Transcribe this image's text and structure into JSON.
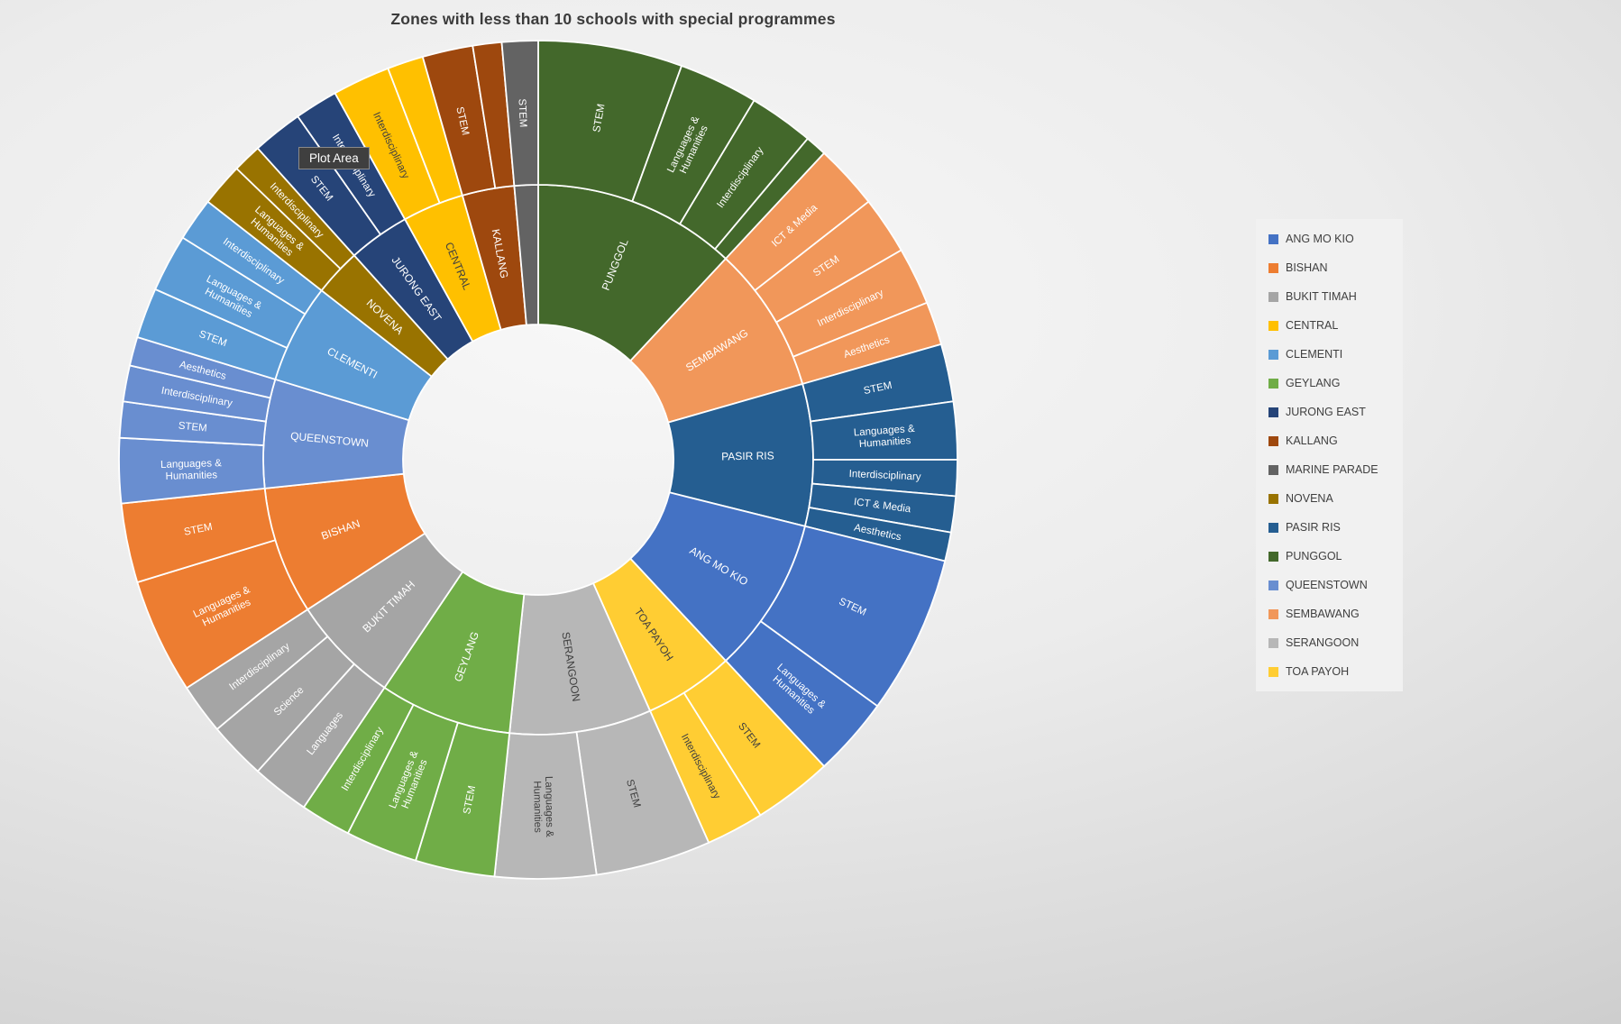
{
  "title": "Zones with less than 10 schools with special programmes",
  "tooltip": {
    "text": "Plot Area"
  },
  "chart_data": {
    "type": "sunburst",
    "title": "Zones with less than 10 schools with special programmes",
    "rings": [
      "zone",
      "programme_category"
    ],
    "start_angle_deg": 0,
    "direction": "clockwise",
    "legend_position": "right",
    "zones": [
      {
        "name": "PUNGGOL",
        "color": "#43682B",
        "text_color": "#FFFFFF",
        "children": [
          {
            "label": "STEM",
            "value": 20
          },
          {
            "label": "Languages & Humanities",
            "value": 11
          },
          {
            "label": "Interdisciplinary",
            "value": 9
          },
          {
            "label": "",
            "value": 3
          }
        ]
      },
      {
        "name": "SEMBAWANG",
        "color": "#F1975A",
        "text_color": "#FFFFFF",
        "children": [
          {
            "label": "ICT & Media",
            "value": 9
          },
          {
            "label": "STEM",
            "value": 8
          },
          {
            "label": "Interdisciplinary",
            "value": 8
          },
          {
            "label": "Aesthetics",
            "value": 6
          }
        ]
      },
      {
        "name": "PASIR RIS",
        "color": "#255E91",
        "text_color": "#FFFFFF",
        "children": [
          {
            "label": "STEM",
            "value": 8
          },
          {
            "label": "Languages & Humanities",
            "value": 8
          },
          {
            "label": "Interdisciplinary",
            "value": 5
          },
          {
            "label": "ICT & Media",
            "value": 5
          },
          {
            "label": "Aesthetics",
            "value": 4
          }
        ]
      },
      {
        "name": "ANG MO KIO",
        "color": "#4472C4",
        "text_color": "#FFFFFF",
        "children": [
          {
            "label": "STEM",
            "value": 22
          },
          {
            "label": "Languages & Humanities",
            "value": 11
          }
        ]
      },
      {
        "name": "TOA PAYOH",
        "color": "#FFCD33",
        "text_color": "#3F3F3F",
        "children": [
          {
            "label": "STEM",
            "value": 11
          },
          {
            "label": "Interdisciplinary",
            "value": 8
          }
        ]
      },
      {
        "name": "SERANGOON",
        "color": "#B7B7B7",
        "text_color": "#3F3F3F",
        "children": [
          {
            "label": "STEM",
            "value": 16
          },
          {
            "label": "Languages & Humanities",
            "value": 14
          }
        ]
      },
      {
        "name": "GEYLANG",
        "color": "#70AD47",
        "text_color": "#FFFFFF",
        "children": [
          {
            "label": "STEM",
            "value": 11
          },
          {
            "label": "Languages & Humanities",
            "value": 10
          },
          {
            "label": "Interdisciplinary",
            "value": 7
          }
        ]
      },
      {
        "name": "BUKIT TIMAH",
        "color": "#A5A5A5",
        "text_color": "#FFFFFF",
        "children": [
          {
            "label": "Languages",
            "value": 8
          },
          {
            "label": "Science",
            "value": 8
          },
          {
            "label": "Interdisciplinary",
            "value": 7
          }
        ]
      },
      {
        "name": "BISHAN",
        "color": "#ED7D31",
        "text_color": "#FFFFFF",
        "children": [
          {
            "label": "Languages & Humanities",
            "value": 16
          },
          {
            "label": "STEM",
            "value": 11
          }
        ]
      },
      {
        "name": "QUEENSTOWN",
        "color": "#698ED0",
        "text_color": "#FFFFFF",
        "children": [
          {
            "label": "Languages & Humanities",
            "value": 9
          },
          {
            "label": "STEM",
            "value": 5
          },
          {
            "label": "Interdisciplinary",
            "value": 5
          },
          {
            "label": "Aesthetics",
            "value": 4
          }
        ]
      },
      {
        "name": "CLEMENTI",
        "color": "#5B9BD5",
        "text_color": "#FFFFFF",
        "children": [
          {
            "label": "STEM",
            "value": 7
          },
          {
            "label": "Languages & Humanities",
            "value": 8
          },
          {
            "label": "Interdisciplinary",
            "value": 6
          }
        ]
      },
      {
        "name": "NOVENA",
        "color": "#997300",
        "text_color": "#FFFFFF",
        "children": [
          {
            "label": "Languages & Humanities",
            "value": 6
          },
          {
            "label": "Interdisciplinary",
            "value": 4
          }
        ]
      },
      {
        "name": "JURONG EAST",
        "color": "#264478",
        "text_color": "#FFFFFF",
        "children": [
          {
            "label": "STEM",
            "value": 7
          },
          {
            "label": "Interdisciplinary",
            "value": 6
          }
        ]
      },
      {
        "name": "CENTRAL",
        "color": "#FFC000",
        "text_color": "#3F3F3F",
        "children": [
          {
            "label": "Interdisciplinary",
            "value": 8
          },
          {
            "label": "",
            "value": 5
          }
        ]
      },
      {
        "name": "KALLANG",
        "color": "#9E480E",
        "text_color": "#FFFFFF",
        "children": [
          {
            "label": "STEM",
            "value": 7
          },
          {
            "label": "",
            "value": 4
          }
        ]
      },
      {
        "name": "MARINE PARADE",
        "color": "#636363",
        "text_color": "#FFFFFF",
        "label_shown": false,
        "children": [
          {
            "label": "STEM",
            "value": 5
          }
        ]
      }
    ]
  },
  "legend": {
    "items": [
      {
        "label": "ANG MO KIO",
        "color": "#4472C4"
      },
      {
        "label": "BISHAN",
        "color": "#ED7D31"
      },
      {
        "label": "BUKIT TIMAH",
        "color": "#A5A5A5"
      },
      {
        "label": "CENTRAL",
        "color": "#FFC000"
      },
      {
        "label": "CLEMENTI",
        "color": "#5B9BD5"
      },
      {
        "label": "GEYLANG",
        "color": "#70AD47"
      },
      {
        "label": "JURONG EAST",
        "color": "#264478"
      },
      {
        "label": "KALLANG",
        "color": "#9E480E"
      },
      {
        "label": "MARINE PARADE",
        "color": "#636363"
      },
      {
        "label": "NOVENA",
        "color": "#997300"
      },
      {
        "label": "PASIR RIS",
        "color": "#255E91"
      },
      {
        "label": "PUNGGOL",
        "color": "#43682B"
      },
      {
        "label": "QUEENSTOWN",
        "color": "#698ED0"
      },
      {
        "label": "SEMBAWANG",
        "color": "#F1975A"
      },
      {
        "label": "SERANGOON",
        "color": "#B7B7B7"
      },
      {
        "label": "TOA PAYOH",
        "color": "#FFCD33"
      }
    ]
  }
}
